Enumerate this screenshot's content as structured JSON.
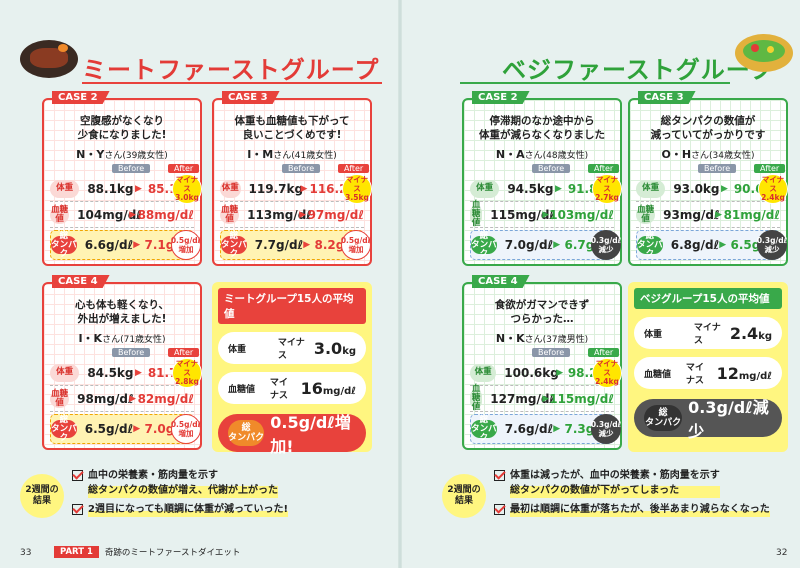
{
  "left": {
    "title": "ミートファーストグループ",
    "cases": [
      {
        "case": "CASE 2",
        "quote": "空腹感がなくなり\n少食になりました!",
        "name": "N・Y",
        "suffix": "さん",
        "age": "(39歳女性)",
        "before_label": "Before",
        "after_label": "After",
        "rows": [
          {
            "tag": "体重",
            "before": "88.1kg",
            "after": "85.1kg",
            "badge": "マイナス\n3.0kg"
          },
          {
            "tag": "血糖値",
            "before": "104mg/dℓ",
            "after": "88mg/dℓ",
            "badge": ""
          },
          {
            "tag": "総\nタンパク",
            "before": "6.6g/dℓ",
            "after": "7.1g/dℓ",
            "badge": "0.5g/dℓ\n増加"
          }
        ]
      },
      {
        "case": "CASE 3",
        "quote": "体重も血糖値も下がって\n良いことづくめです!",
        "name": "I・M",
        "suffix": "さん",
        "age": "(41歳女性)",
        "before_label": "Before",
        "after_label": "After",
        "rows": [
          {
            "tag": "体重",
            "before": "119.7kg",
            "after": "116.2kg",
            "badge": "マイナス\n3.5kg"
          },
          {
            "tag": "血糖値",
            "before": "113mg/dℓ",
            "after": "97mg/dℓ",
            "badge": ""
          },
          {
            "tag": "総\nタンパク",
            "before": "7.7g/dℓ",
            "after": "8.2g/dℓ",
            "badge": "0.5g/dℓ\n増加"
          }
        ]
      },
      {
        "case": "CASE 4",
        "quote": "心も体も軽くなり、\n外出が増えました!",
        "name": "I・K",
        "suffix": "さん",
        "age": "(71歳女性)",
        "before_label": "Before",
        "after_label": "After",
        "rows": [
          {
            "tag": "体重",
            "before": "84.5kg",
            "after": "81.7kg",
            "badge": "マイナス\n2.8kg"
          },
          {
            "tag": "血糖値",
            "before": "98mg/dℓ",
            "after": "82mg/dℓ",
            "badge": ""
          },
          {
            "tag": "総\nタンパク",
            "before": "6.5g/dℓ",
            "after": "7.0g/dℓ",
            "badge": "0.5g/dℓ\n増加"
          }
        ]
      }
    ],
    "avg": {
      "heading": "ミートグループ15人の平均値",
      "weight_label": "体重",
      "weight_pre": "マイナス",
      "weight_val": "3.0",
      "weight_unit": "kg",
      "sugar_label": "血糖値",
      "sugar_pre": "マイナス",
      "sugar_val": "16",
      "sugar_unit": "mg/dℓ",
      "tp_label": "総\nタンパク",
      "tp_val": "0.5g/dℓ増加!"
    },
    "result": {
      "label": "2週間の\n結果",
      "items": [
        "血中の栄養素・筋肉量を示す\n総タンパクの数値が増え、代謝が上がった",
        "2週目になっても順調に体重が減っていった!"
      ]
    },
    "page_num": "33",
    "footer": {
      "part": "PART 1",
      "title": "奇跡のミートファーストダイエット"
    }
  },
  "right": {
    "title": "ベジファーストグループ",
    "cases": [
      {
        "case": "CASE 2",
        "quote": "停滞期のなか途中から\n体重が減らなくなりました",
        "name": "N・A",
        "suffix": "さん",
        "age": "(48歳女性)",
        "before_label": "Before",
        "after_label": "After",
        "rows": [
          {
            "tag": "体重",
            "before": "94.5kg",
            "after": "91.8kg",
            "badge": "マイナス\n2.7kg"
          },
          {
            "tag": "血糖値",
            "before": "115mg/dℓ",
            "after": "103mg/dℓ",
            "badge": ""
          },
          {
            "tag": "総\nタンパク",
            "before": "7.0g/dℓ",
            "after": "6.7g/dℓ",
            "badge": "0.3g/dℓ\n減少"
          }
        ]
      },
      {
        "case": "CASE 3",
        "quote": "総タンパクの数値が\n減っていてがっかりです",
        "name": "O・H",
        "suffix": "さん",
        "age": "(34歳女性)",
        "before_label": "Before",
        "after_label": "After",
        "rows": [
          {
            "tag": "体重",
            "before": "93.0kg",
            "after": "90.6kg",
            "badge": "マイナス\n2.4kg"
          },
          {
            "tag": "血糖値",
            "before": "93mg/dℓ",
            "after": "81mg/dℓ",
            "badge": ""
          },
          {
            "tag": "総\nタンパク",
            "before": "6.8g/dℓ",
            "after": "6.5g/dℓ",
            "badge": "0.3g/dℓ\n減少"
          }
        ]
      },
      {
        "case": "CASE 4",
        "quote": "食欲がガマンできず\nつらかった…",
        "name": "N・K",
        "suffix": "さん",
        "age": "(37歳男性)",
        "before_label": "Before",
        "after_label": "After",
        "rows": [
          {
            "tag": "体重",
            "before": "100.6kg",
            "after": "98.2kg",
            "badge": "マイナス\n2.4kg"
          },
          {
            "tag": "血糖値",
            "before": "127mg/dℓ",
            "after": "115mg/dℓ",
            "badge": ""
          },
          {
            "tag": "総\nタンパク",
            "before": "7.6g/dℓ",
            "after": "7.3g/dℓ",
            "badge": "0.3g/dℓ\n減少"
          }
        ]
      }
    ],
    "avg": {
      "heading": "ベジグループ15人の平均値",
      "weight_label": "体重",
      "weight_pre": "マイナス",
      "weight_val": "2.4",
      "weight_unit": "kg",
      "sugar_label": "血糖値",
      "sugar_pre": "マイナス",
      "sugar_val": "12",
      "sugar_unit": "mg/dℓ",
      "tp_label": "総\nタンパク",
      "tp_val": "0.3g/dℓ減少"
    },
    "result": {
      "label": "2週間の\n結果",
      "items": [
        "体重は減ったが、血中の栄養素・筋肉量を示す\n総タンパクの数値が下がってしまった",
        "最初は順調に体重が落ちたが、後半あまり減らなくなった"
      ]
    },
    "page_num": "32"
  },
  "colors": {
    "meat": "#e8423c",
    "veg": "#39a94a",
    "highlight": "#fff680"
  }
}
